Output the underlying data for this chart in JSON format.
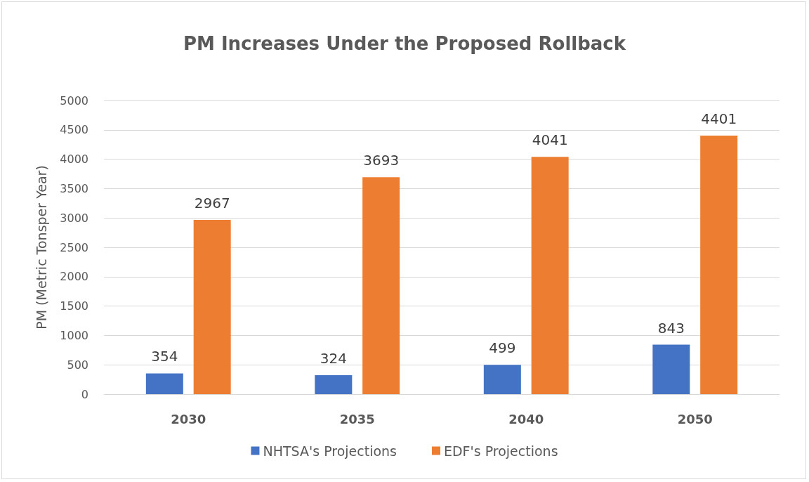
{
  "chart_data": {
    "type": "bar",
    "title": "PM Increases Under the Proposed Rollback",
    "ylabel": "PM (Metric Tonsper Year)",
    "categories": [
      "2030",
      "2035",
      "2040",
      "2050"
    ],
    "series": [
      {
        "name": "NHTSA's Projections",
        "color": "#4472c4",
        "values": [
          354,
          324,
          499,
          843
        ]
      },
      {
        "name": "EDF's Projections",
        "color": "#ed7d31",
        "values": [
          2967,
          3693,
          4041,
          4401
        ]
      }
    ],
    "ylim": [
      0,
      5000
    ],
    "yticks": [
      0,
      500,
      1000,
      1500,
      2000,
      2500,
      3000,
      3500,
      4000,
      4500,
      5000
    ],
    "grid": "y",
    "legend": "bottom",
    "data_labels": true
  }
}
